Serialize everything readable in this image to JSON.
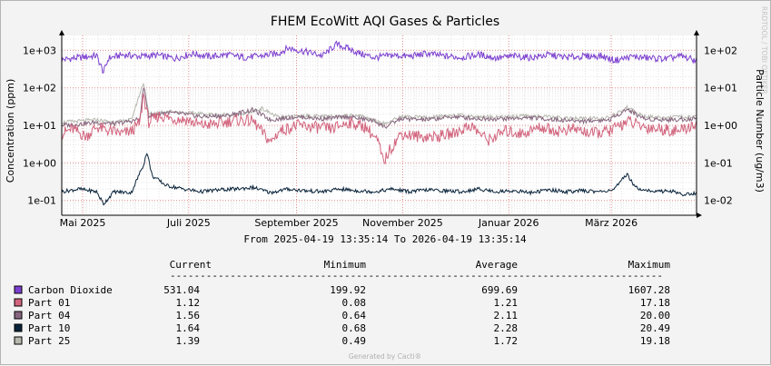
{
  "chart_data": {
    "type": "line",
    "title": "FHEM EcoWitt AQI Gases & Particles",
    "ylabel": "Concentration (ppm)",
    "y2label": "Particle Number (ug/m3)",
    "yscale": "log",
    "ylim": [
      0.04,
      2500
    ],
    "yticks": [
      {
        "value": 0.1,
        "label": "1e-01"
      },
      {
        "value": 1,
        "label": "1e+00"
      },
      {
        "value": 10,
        "label": "1e+01"
      },
      {
        "value": 100,
        "label": "1e+02"
      },
      {
        "value": 1000,
        "label": "1e+03"
      }
    ],
    "y2ticks": [
      {
        "value": 0.1,
        "label": "1e-02"
      },
      {
        "value": 1,
        "label": "1e-01"
      },
      {
        "value": 10,
        "label": "1e+00"
      },
      {
        "value": 100,
        "label": "1e+01"
      },
      {
        "value": 1000,
        "label": "1e+02"
      }
    ],
    "xrange_days": [
      0,
      365
    ],
    "xticks": [
      {
        "day": 12,
        "label": "Mai 2025"
      },
      {
        "day": 73,
        "label": "Juli 2025"
      },
      {
        "day": 135,
        "label": "September 2025"
      },
      {
        "day": 196,
        "label": "November 2025"
      },
      {
        "day": 257,
        "label": "Januar 2026"
      },
      {
        "day": 316,
        "label": "März 2026"
      }
    ],
    "range_text": "From 2025-04-19 13:35:14 To 2026-04-19 13:35:14",
    "watermark": "RRDTOOL / TOBI OETIKER",
    "legend_headers": [
      "Current",
      "Minimum",
      "Average",
      "Maximum"
    ],
    "legend_rule": "----------------------------------------------------------------------------------",
    "series": [
      {
        "name": "Carbon Dioxide",
        "color": "#7b3fcf",
        "current": "531.04",
        "minimum": "199.92",
        "average": "699.69",
        "maximum": "1607.28",
        "values": [
          [
            0,
            560
          ],
          [
            10,
            640
          ],
          [
            20,
            720
          ],
          [
            24,
            260
          ],
          [
            27,
            620
          ],
          [
            35,
            760
          ],
          [
            45,
            690
          ],
          [
            55,
            740
          ],
          [
            65,
            610
          ],
          [
            75,
            820
          ],
          [
            85,
            680
          ],
          [
            95,
            760
          ],
          [
            105,
            650
          ],
          [
            115,
            710
          ],
          [
            125,
            850
          ],
          [
            130,
            1150
          ],
          [
            140,
            930
          ],
          [
            150,
            720
          ],
          [
            158,
            1450
          ],
          [
            165,
            1100
          ],
          [
            172,
            800
          ],
          [
            180,
            640
          ],
          [
            190,
            740
          ],
          [
            200,
            690
          ],
          [
            210,
            820
          ],
          [
            220,
            700
          ],
          [
            230,
            650
          ],
          [
            240,
            770
          ],
          [
            250,
            620
          ],
          [
            260,
            700
          ],
          [
            270,
            640
          ],
          [
            280,
            760
          ],
          [
            290,
            650
          ],
          [
            300,
            690
          ],
          [
            310,
            710
          ],
          [
            318,
            540
          ],
          [
            328,
            680
          ],
          [
            338,
            620
          ],
          [
            348,
            590
          ],
          [
            356,
            700
          ],
          [
            365,
            531
          ]
        ]
      },
      {
        "name": "Part 01",
        "color": "#d2647d",
        "current": "1.12",
        "minimum": "0.08",
        "average": "1.21",
        "maximum": "17.18",
        "values": [
          [
            0,
            6
          ],
          [
            6,
            8
          ],
          [
            14,
            5
          ],
          [
            20,
            9
          ],
          [
            28,
            7
          ],
          [
            35,
            6
          ],
          [
            40,
            7
          ],
          [
            45,
            12
          ],
          [
            47,
            70
          ],
          [
            50,
            12
          ],
          [
            56,
            18
          ],
          [
            64,
            15
          ],
          [
            72,
            14
          ],
          [
            80,
            10
          ],
          [
            90,
            11
          ],
          [
            100,
            14
          ],
          [
            110,
            13
          ],
          [
            116,
            6
          ],
          [
            120,
            3.5
          ],
          [
            125,
            7
          ],
          [
            135,
            10
          ],
          [
            145,
            9
          ],
          [
            155,
            8
          ],
          [
            165,
            12
          ],
          [
            175,
            9
          ],
          [
            182,
            3.5
          ],
          [
            185,
            1
          ],
          [
            188,
            2
          ],
          [
            195,
            6
          ],
          [
            205,
            5
          ],
          [
            215,
            5
          ],
          [
            225,
            6
          ],
          [
            235,
            10
          ],
          [
            245,
            4
          ],
          [
            255,
            7
          ],
          [
            265,
            6
          ],
          [
            275,
            9
          ],
          [
            285,
            7
          ],
          [
            295,
            8
          ],
          [
            305,
            6
          ],
          [
            315,
            7
          ],
          [
            325,
            13
          ],
          [
            335,
            9
          ],
          [
            345,
            8
          ],
          [
            355,
            7
          ],
          [
            365,
            11
          ]
        ]
      },
      {
        "name": "Part 04",
        "color": "#86667e",
        "current": "1.56",
        "minimum": "0.64",
        "average": "2.11",
        "maximum": "20.00",
        "values": [
          [
            0,
            10
          ],
          [
            12,
            11
          ],
          [
            20,
            12
          ],
          [
            30,
            11
          ],
          [
            40,
            13
          ],
          [
            45,
            15
          ],
          [
            47,
            110
          ],
          [
            50,
            18
          ],
          [
            60,
            22
          ],
          [
            70,
            20
          ],
          [
            80,
            17
          ],
          [
            95,
            18
          ],
          [
            110,
            26
          ],
          [
            120,
            14
          ],
          [
            135,
            17
          ],
          [
            150,
            15
          ],
          [
            165,
            17
          ],
          [
            180,
            13
          ],
          [
            186,
            9
          ],
          [
            195,
            15
          ],
          [
            210,
            14
          ],
          [
            225,
            17
          ],
          [
            240,
            15
          ],
          [
            255,
            15
          ],
          [
            270,
            16
          ],
          [
            285,
            14
          ],
          [
            300,
            13
          ],
          [
            315,
            14
          ],
          [
            325,
            27
          ],
          [
            335,
            15
          ],
          [
            350,
            14
          ],
          [
            365,
            15
          ]
        ]
      },
      {
        "name": "Part 10",
        "color": "#09233a",
        "current": "1.64",
        "minimum": "0.68",
        "average": "2.28",
        "maximum": "20.49",
        "values": [
          [
            0,
            0.17
          ],
          [
            10,
            0.2
          ],
          [
            20,
            0.17
          ],
          [
            24,
            0.08
          ],
          [
            30,
            0.17
          ],
          [
            40,
            0.16
          ],
          [
            47,
            0.9
          ],
          [
            49,
            1.9
          ],
          [
            52,
            0.45
          ],
          [
            60,
            0.25
          ],
          [
            70,
            0.2
          ],
          [
            80,
            0.17
          ],
          [
            90,
            0.19
          ],
          [
            100,
            0.2
          ],
          [
            110,
            0.22
          ],
          [
            120,
            0.16
          ],
          [
            130,
            0.2
          ],
          [
            140,
            0.18
          ],
          [
            150,
            0.17
          ],
          [
            160,
            0.2
          ],
          [
            170,
            0.18
          ],
          [
            180,
            0.17
          ],
          [
            190,
            0.2
          ],
          [
            200,
            0.17
          ],
          [
            210,
            0.19
          ],
          [
            220,
            0.18
          ],
          [
            230,
            0.17
          ],
          [
            240,
            0.2
          ],
          [
            250,
            0.17
          ],
          [
            260,
            0.18
          ],
          [
            270,
            0.16
          ],
          [
            280,
            0.19
          ],
          [
            290,
            0.17
          ],
          [
            300,
            0.18
          ],
          [
            310,
            0.17
          ],
          [
            318,
            0.2
          ],
          [
            325,
            0.5
          ],
          [
            330,
            0.22
          ],
          [
            340,
            0.17
          ],
          [
            350,
            0.18
          ],
          [
            358,
            0.14
          ],
          [
            365,
            0.16
          ]
        ]
      },
      {
        "name": "Part 25",
        "color": "#b6b8ae",
        "current": "1.39",
        "minimum": "0.49",
        "average": "1.72",
        "maximum": "19.18",
        "values": [
          [
            0,
            12
          ],
          [
            10,
            13
          ],
          [
            20,
            14
          ],
          [
            30,
            12
          ],
          [
            40,
            14
          ],
          [
            47,
            140
          ],
          [
            50,
            20
          ],
          [
            60,
            24
          ],
          [
            75,
            21
          ],
          [
            90,
            19
          ],
          [
            105,
            20
          ],
          [
            115,
            28
          ],
          [
            125,
            16
          ],
          [
            140,
            18
          ],
          [
            155,
            17
          ],
          [
            170,
            19
          ],
          [
            186,
            11
          ],
          [
            195,
            17
          ],
          [
            210,
            16
          ],
          [
            225,
            19
          ],
          [
            240,
            17
          ],
          [
            255,
            17
          ],
          [
            270,
            18
          ],
          [
            285,
            16
          ],
          [
            300,
            15
          ],
          [
            315,
            16
          ],
          [
            325,
            30
          ],
          [
            335,
            17
          ],
          [
            350,
            16
          ],
          [
            365,
            17
          ]
        ]
      }
    ]
  },
  "footer": {
    "generated_by": "Generated by Cacti®"
  }
}
